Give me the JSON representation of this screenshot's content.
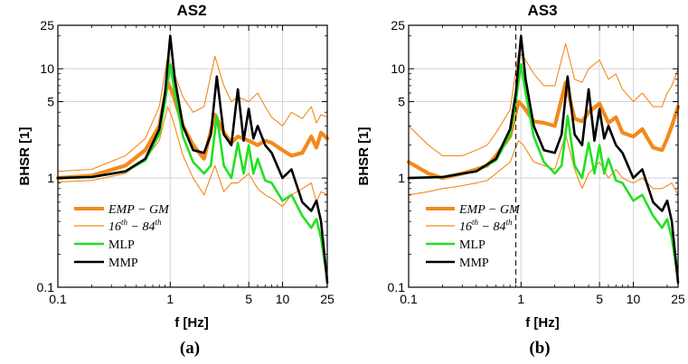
{
  "chart_data": [
    {
      "type": "line",
      "title": "AS2",
      "xlabel": "f [Hz]",
      "ylabel": "BHSR [1]",
      "panel_label": "(a)",
      "xscale": "log",
      "yscale": "log",
      "xlim": [
        0.1,
        25
      ],
      "ylim": [
        0.1,
        25
      ],
      "xticks": [
        "0.1",
        "1",
        "5",
        "10",
        "25"
      ],
      "yticks": [
        "0.1",
        "1",
        "5",
        "10",
        "25"
      ],
      "grid": true,
      "legend_position": "bottom-left",
      "series": [
        {
          "name": "EMP-GM",
          "x": [
            0.1,
            0.2,
            0.4,
            0.6,
            0.8,
            0.95,
            1.05,
            1.3,
            1.6,
            2,
            2.5,
            3,
            3.5,
            4,
            5,
            6,
            7,
            8,
            10,
            12,
            15,
            18,
            20,
            22,
            25
          ],
          "y": [
            1.0,
            1.05,
            1.3,
            1.8,
            3.0,
            7.5,
            6.0,
            3.0,
            2.0,
            1.5,
            3.8,
            2.6,
            2.1,
            2.4,
            2.2,
            2.0,
            2.2,
            2.1,
            1.8,
            1.6,
            1.7,
            2.4,
            1.9,
            2.6,
            2.3
          ]
        },
        {
          "name": "16th-84th (upper)",
          "x": [
            0.1,
            0.2,
            0.4,
            0.6,
            0.8,
            0.95,
            1.05,
            1.3,
            1.6,
            2,
            2.5,
            3,
            3.5,
            4,
            5,
            6,
            7,
            8,
            10,
            12,
            15,
            18,
            20,
            22,
            25
          ],
          "y": [
            1.15,
            1.2,
            1.6,
            2.3,
            4.5,
            13,
            10,
            5.5,
            4,
            4.5,
            13,
            7,
            5,
            5.5,
            5,
            6,
            4.5,
            3.6,
            3.0,
            4.0,
            3.5,
            4.5,
            3.2,
            3.8,
            3.6
          ]
        },
        {
          "name": "16th-84th (lower)",
          "x": [
            0.1,
            0.2,
            0.4,
            0.6,
            0.8,
            0.95,
            1.05,
            1.3,
            1.6,
            2,
            2.5,
            3,
            3.5,
            4,
            5,
            6,
            7,
            8,
            10,
            12,
            15,
            18,
            20,
            22,
            25
          ],
          "y": [
            0.92,
            0.95,
            1.1,
            1.5,
            2.2,
            4.5,
            3.5,
            1.6,
            1.0,
            0.7,
            1.3,
            0.75,
            0.9,
            0.9,
            1.1,
            0.8,
            0.7,
            0.65,
            0.55,
            0.7,
            0.8,
            0.9,
            0.6,
            0.75,
            0.7
          ]
        },
        {
          "name": "MLP",
          "x": [
            0.1,
            0.2,
            0.4,
            0.6,
            0.8,
            0.9,
            1.0,
            1.1,
            1.3,
            1.6,
            2,
            2.3,
            2.6,
            3,
            3.5,
            4,
            4.5,
            5,
            5.5,
            6,
            7,
            8,
            10,
            12,
            15,
            18,
            20,
            22,
            25
          ],
          "y": [
            1.0,
            1.02,
            1.15,
            1.45,
            2.5,
            5.0,
            11,
            6.0,
            2.4,
            1.4,
            1.1,
            1.3,
            3.7,
            1.3,
            1.0,
            2.1,
            1.1,
            2.0,
            1.1,
            1.5,
            0.95,
            0.9,
            0.62,
            0.7,
            0.45,
            0.35,
            0.42,
            0.28,
            0.12
          ]
        },
        {
          "name": "MMP",
          "x": [
            0.1,
            0.2,
            0.4,
            0.6,
            0.8,
            0.9,
            1.0,
            1.1,
            1.3,
            1.6,
            2,
            2.3,
            2.6,
            3,
            3.5,
            4,
            4.5,
            5,
            5.5,
            6,
            7,
            8,
            10,
            12,
            15,
            18,
            20,
            22,
            25
          ],
          "y": [
            1.0,
            1.02,
            1.15,
            1.5,
            2.8,
            6.0,
            20,
            8.0,
            3.0,
            1.8,
            1.7,
            2.5,
            8.5,
            2.5,
            2.0,
            6.5,
            2.2,
            4.3,
            2.3,
            3.0,
            2.0,
            1.7,
            1.0,
            1.2,
            0.6,
            0.5,
            0.62,
            0.4,
            0.11
          ]
        }
      ]
    },
    {
      "type": "line",
      "title": "AS3",
      "xlabel": "f [Hz]",
      "ylabel": "BHSR [1]",
      "panel_label": "(b)",
      "xscale": "log",
      "yscale": "log",
      "xlim": [
        0.1,
        25
      ],
      "ylim": [
        0.1,
        25
      ],
      "xticks": [
        "0.1",
        "1",
        "5",
        "10",
        "25"
      ],
      "yticks": [
        "0.1",
        "1",
        "5",
        "10",
        "25"
      ],
      "grid": true,
      "legend_position": "bottom-left",
      "vline_x": 0.9,
      "series": [
        {
          "name": "EMP-GM",
          "x": [
            0.1,
            0.15,
            0.2,
            0.3,
            0.4,
            0.5,
            0.6,
            0.8,
            0.95,
            1.05,
            1.3,
            1.6,
            2,
            2.5,
            3,
            3.5,
            4,
            5,
            6,
            7,
            8,
            10,
            12,
            15,
            18,
            20,
            22,
            25
          ],
          "y": [
            1.4,
            1.1,
            1.0,
            1.1,
            1.2,
            1.3,
            1.6,
            2.4,
            5.0,
            4.5,
            3.3,
            3.2,
            3.0,
            7.5,
            3.5,
            3.3,
            4.0,
            4.8,
            3.2,
            3.6,
            2.6,
            2.4,
            2.8,
            1.9,
            1.8,
            2.3,
            3.0,
            4.5
          ]
        },
        {
          "name": "16th-84th (upper)",
          "x": [
            0.1,
            0.15,
            0.2,
            0.3,
            0.4,
            0.5,
            0.6,
            0.8,
            0.95,
            1.05,
            1.3,
            1.6,
            2,
            2.5,
            3,
            3.5,
            4,
            5,
            6,
            7,
            8,
            10,
            12,
            15,
            18,
            20,
            22,
            25
          ],
          "y": [
            3.0,
            2.0,
            1.6,
            1.6,
            1.8,
            2.0,
            2.6,
            4.2,
            14,
            13,
            9,
            7,
            7,
            17,
            8,
            7.5,
            10,
            12,
            8,
            9,
            6.5,
            5,
            6,
            4.5,
            4.5,
            6,
            7,
            10
          ]
        },
        {
          "name": "16th-84th (lower)",
          "x": [
            0.1,
            0.15,
            0.2,
            0.3,
            0.4,
            0.5,
            0.6,
            0.8,
            0.95,
            1.05,
            1.3,
            1.6,
            2,
            2.5,
            3,
            3.5,
            4,
            5,
            6,
            7,
            8,
            10,
            12,
            15,
            18,
            20,
            22,
            25
          ],
          "y": [
            0.7,
            0.75,
            0.8,
            0.85,
            0.9,
            0.95,
            1.1,
            1.4,
            2.2,
            2.0,
            1.4,
            1.3,
            1.2,
            2.5,
            1.2,
            0.8,
            1.1,
            1.4,
            1.0,
            1.2,
            1.0,
            0.9,
            1.0,
            0.8,
            0.8,
            0.85,
            0.9,
            0.7
          ]
        },
        {
          "name": "MLP",
          "x": [
            0.1,
            0.2,
            0.4,
            0.6,
            0.8,
            0.9,
            1.0,
            1.1,
            1.3,
            1.6,
            2,
            2.3,
            2.6,
            3,
            3.5,
            4,
            4.5,
            5,
            5.5,
            6,
            7,
            8,
            10,
            12,
            15,
            18,
            20,
            22,
            25
          ],
          "y": [
            1.0,
            1.02,
            1.15,
            1.45,
            2.5,
            5.0,
            11,
            6.0,
            2.4,
            1.4,
            1.1,
            1.3,
            3.7,
            1.3,
            1.0,
            2.1,
            1.1,
            2.0,
            1.1,
            1.5,
            0.95,
            0.9,
            0.62,
            0.7,
            0.45,
            0.35,
            0.42,
            0.28,
            0.12
          ]
        },
        {
          "name": "MMP",
          "x": [
            0.1,
            0.2,
            0.4,
            0.6,
            0.8,
            0.9,
            1.0,
            1.1,
            1.3,
            1.6,
            2,
            2.3,
            2.6,
            3,
            3.5,
            4,
            4.5,
            5,
            5.5,
            6,
            7,
            8,
            10,
            12,
            15,
            18,
            20,
            22,
            25
          ],
          "y": [
            1.0,
            1.02,
            1.15,
            1.5,
            2.8,
            6.0,
            20,
            8.0,
            3.0,
            1.8,
            1.7,
            2.5,
            8.5,
            2.5,
            2.0,
            6.5,
            2.2,
            4.3,
            2.3,
            3.0,
            2.0,
            1.7,
            1.0,
            1.2,
            0.6,
            0.5,
            0.62,
            0.4,
            0.11
          ]
        }
      ]
    }
  ],
  "legend": {
    "emp": "EMP − GM",
    "band_base_1": "16",
    "band_sup_1": "th",
    "band_mid": " − 84",
    "band_sup_2": "th",
    "mlp": "MLP",
    "mmp": "MMP"
  },
  "colors": {
    "emp": "#f28a1c",
    "band": "#f28a1c",
    "mlp": "#22e022",
    "mmp": "#000000",
    "grid": "#d4d4d4"
  }
}
